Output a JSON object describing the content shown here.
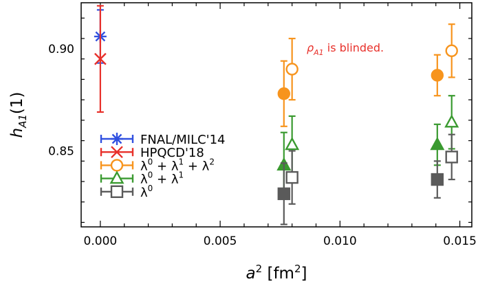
{
  "chart_data": {
    "type": "scatter",
    "title": "",
    "xlabel": "a² [fm²]",
    "ylabel": "h_A1(1)",
    "xlim": [
      -0.0008,
      0.0155
    ],
    "ylim": [
      0.8128,
      0.9225
    ],
    "xticks": [
      "0.000",
      "0.005",
      "0.010",
      "0.015"
    ],
    "xtick_values": [
      0.0,
      0.005,
      0.01,
      0.015
    ],
    "yticks": [
      "0.85",
      "0.90"
    ],
    "ytick_values": [
      0.85,
      0.9
    ],
    "annotation": {
      "text": "ρ_A1 is blinded.",
      "color": "#e8302a"
    },
    "legend_position": "lower-left",
    "series": [
      {
        "name": "FNAL/MILC'14",
        "label_parts": [
          "FNAL/MILC'14"
        ],
        "color": "#3050e0",
        "marker": "asterisk",
        "filled": false,
        "points": [
          {
            "x": 0.0,
            "y": 0.906,
            "err": 0.013
          }
        ]
      },
      {
        "name": "HPQCD'18",
        "label_parts": [
          "HPQCD'18"
        ],
        "color": "#e8302a",
        "marker": "x",
        "filled": false,
        "points": [
          {
            "x": 0.0,
            "y": 0.895,
            "err": 0.026
          }
        ]
      },
      {
        "name": "λ⁰ + λ¹ + λ²",
        "label_parts": [
          "λ",
          "0",
          " + λ",
          "1",
          " + λ",
          "2"
        ],
        "color": "#f7941d",
        "marker": "circle",
        "filled": false,
        "points": [
          {
            "x": 0.00766,
            "y": 0.878,
            "err": 0.016,
            "filled": true
          },
          {
            "x": 0.008,
            "y": 0.89,
            "err": 0.015,
            "filled": false
          },
          {
            "x": 0.01406,
            "y": 0.887,
            "err": 0.01,
            "filled": true
          },
          {
            "x": 0.01466,
            "y": 0.899,
            "err": 0.013,
            "filled": false
          }
        ]
      },
      {
        "name": "λ⁰ + λ¹",
        "label_parts": [
          "λ",
          "0",
          " + λ",
          "1"
        ],
        "color": "#3a9a30",
        "marker": "triangle",
        "filled": false,
        "points": [
          {
            "x": 0.00766,
            "y": 0.843,
            "err": 0.016,
            "filled": true
          },
          {
            "x": 0.008,
            "y": 0.853,
            "err": 0.014,
            "filled": false
          },
          {
            "x": 0.01406,
            "y": 0.853,
            "err": 0.01,
            "filled": true
          },
          {
            "x": 0.01466,
            "y": 0.864,
            "err": 0.013,
            "filled": false
          }
        ]
      },
      {
        "name": "λ⁰",
        "label_parts": [
          "λ",
          "0"
        ],
        "color": "#5a5a5a",
        "marker": "square",
        "filled": false,
        "points": [
          {
            "x": 0.00766,
            "y": 0.829,
            "err": 0.015,
            "filled": true
          },
          {
            "x": 0.008,
            "y": 0.837,
            "err": 0.013,
            "filled": false
          },
          {
            "x": 0.01406,
            "y": 0.836,
            "err": 0.009,
            "filled": true
          },
          {
            "x": 0.01466,
            "y": 0.847,
            "err": 0.011,
            "filled": false
          }
        ]
      }
    ]
  }
}
